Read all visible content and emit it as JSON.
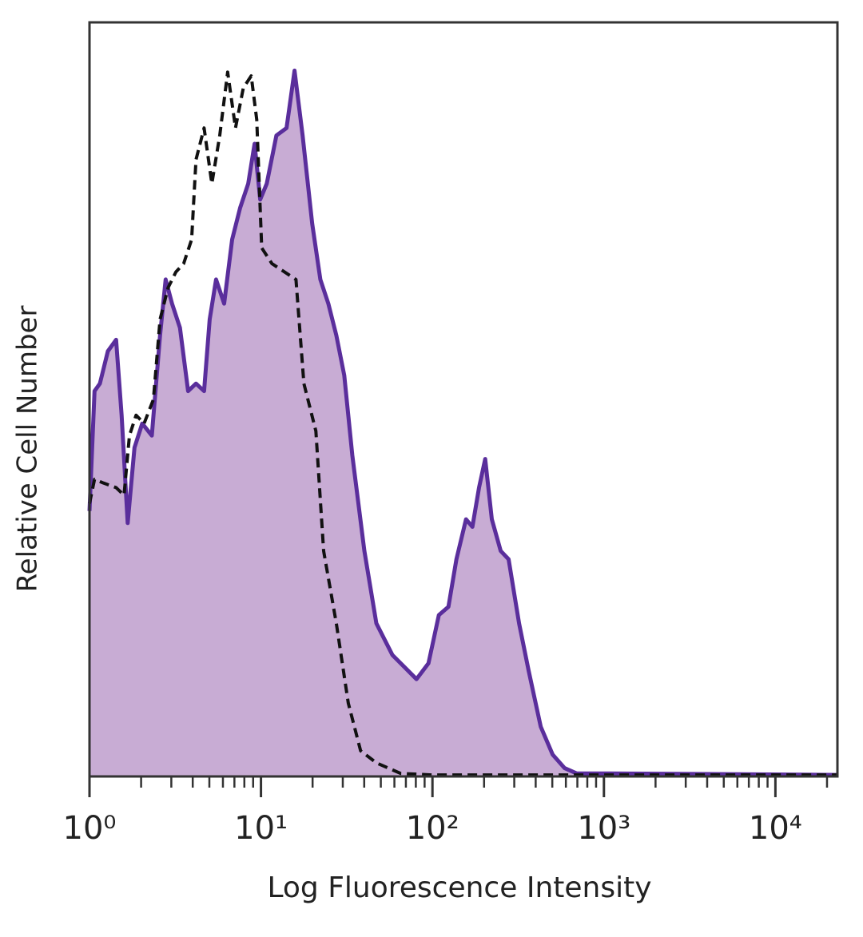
{
  "chart_data": {
    "type": "area",
    "x_label": "Log Fluorescence Intensity",
    "y_label": "Relative Cell Number",
    "xscale": "log",
    "xlim": [
      1,
      23000
    ],
    "ylim": [
      0,
      100
    ],
    "xticks": [
      {
        "value": 1,
        "label": "10⁰"
      },
      {
        "value": 10,
        "label": "10¹"
      },
      {
        "value": 100,
        "label": "10²"
      },
      {
        "value": 1000,
        "label": "10³"
      },
      {
        "value": 10000,
        "label": "10⁴"
      }
    ],
    "xminorticks": [
      2,
      3,
      4,
      5,
      6,
      7,
      8,
      9,
      20,
      30,
      40,
      50,
      60,
      70,
      80,
      90,
      200,
      300,
      400,
      500,
      600,
      700,
      800,
      900,
      2000,
      3000,
      4000,
      5000,
      6000,
      7000,
      8000,
      9000,
      20000
    ],
    "series": [
      {
        "color": "#5a2e9c",
        "fill": "#c8acd4",
        "dashed": false,
        "x": [
          1,
          1.07,
          1.15,
          1.28,
          1.43,
          1.54,
          1.67,
          1.83,
          2.03,
          2.31,
          2.58,
          2.78,
          3.03,
          3.37,
          3.76,
          4.18,
          4.66,
          5.02,
          5.47,
          6.1,
          6.79,
          7.56,
          8.42,
          9.18,
          9.89,
          10.8,
          12.3,
          14.1,
          15.7,
          17.5,
          19.9,
          22.2,
          24.7,
          27.5,
          30.6,
          34.1,
          40.1,
          47.1,
          58.4,
          80.7,
          94.8,
          109,
          124,
          138,
          157,
          171,
          187,
          203,
          222,
          250,
          278,
          320,
          364,
          428,
          502,
          590,
          693,
          1070,
          23000
        ],
        "values": [
          35.2,
          51.1,
          52.1,
          56.4,
          57.9,
          47.9,
          33.6,
          43.6,
          46.8,
          45.2,
          58.5,
          65.9,
          62.7,
          59.5,
          51.1,
          52.1,
          51.1,
          60.6,
          65.9,
          62.7,
          71.2,
          75.4,
          78.6,
          83.9,
          76.5,
          78.6,
          85.0,
          86.0,
          93.6,
          85.0,
          73.3,
          65.9,
          62.7,
          58.5,
          53.2,
          42.6,
          29.9,
          20.3,
          16.1,
          12.9,
          15.0,
          21.4,
          22.5,
          28.8,
          34.1,
          33.1,
          38.3,
          42.1,
          34.1,
          29.9,
          28.8,
          20.3,
          14.0,
          6.6,
          2.9,
          1.1,
          0.4,
          0.4,
          0.2
        ]
      },
      {
        "color": "#111111",
        "dashed": true,
        "x": [
          1,
          1.07,
          1.21,
          1.43,
          1.59,
          1.71,
          1.87,
          2.08,
          2.36,
          2.58,
          2.87,
          3.19,
          3.54,
          3.94,
          4.18,
          4.66,
          5.17,
          5.75,
          6.39,
          7.1,
          7.89,
          8.77,
          9.45,
          10.1,
          11.6,
          16.0,
          17.8,
          20.9,
          23.2,
          27.5,
          32.3,
          38.1,
          47.1,
          65.2,
          99.7,
          23000
        ],
        "values": [
          36.2,
          39.4,
          38.9,
          38.3,
          37.3,
          45.2,
          47.9,
          46.8,
          50.0,
          60.6,
          64.8,
          66.9,
          68.0,
          71.2,
          81.8,
          86.0,
          78.6,
          85.0,
          93.4,
          86.0,
          91.3,
          92.9,
          87.1,
          70.1,
          68.0,
          65.9,
          52.1,
          45.8,
          29.9,
          20.3,
          9.7,
          3.4,
          1.8,
          0.4,
          0.2,
          0.2
        ]
      }
    ]
  }
}
